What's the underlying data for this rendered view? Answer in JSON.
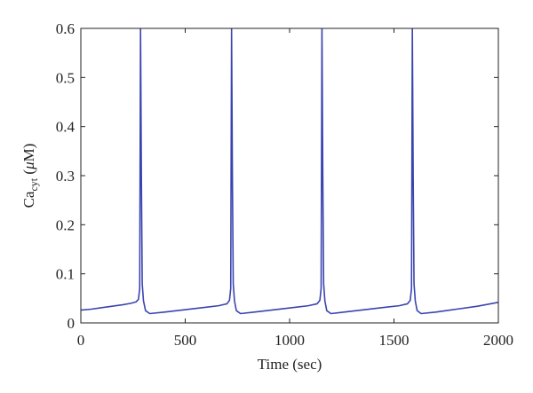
{
  "chart_data": {
    "type": "line",
    "xlabel": "Time (sec)",
    "ylabel": {
      "main": "Ca",
      "sub": "cyt",
      "unit_open": " (",
      "unit_mu": "μ",
      "unit_rest": "M)"
    },
    "xlim": [
      0,
      2000
    ],
    "ylim": [
      0,
      0.6
    ],
    "xticks": [
      0,
      500,
      1000,
      1500,
      2000
    ],
    "xtick_labels": [
      "0",
      "500",
      "1000",
      "1500",
      "2000"
    ],
    "yticks": [
      0,
      0.1,
      0.2,
      0.3,
      0.4,
      0.5,
      0.6
    ],
    "ytick_labels": [
      "0",
      "0.1",
      "0.2",
      "0.3",
      "0.4",
      "0.5",
      "0.6"
    ],
    "grid": false,
    "legend": "none",
    "series": [
      {
        "color": "#3a44b0",
        "x": [
          0,
          50,
          100,
          150,
          200,
          240,
          265,
          276,
          282,
          286,
          290,
          294,
          300,
          310,
          330,
          400,
          500,
          600,
          660,
          700,
          712,
          718,
          722,
          726,
          730,
          736,
          745,
          765,
          830,
          930,
          1030,
          1090,
          1132,
          1145,
          1151,
          1155,
          1159,
          1163,
          1169,
          1178,
          1198,
          1260,
          1360,
          1460,
          1525,
          1565,
          1578,
          1584,
          1588,
          1592,
          1596,
          1602,
          1611,
          1630,
          1700,
          1800,
          1900,
          2000
        ],
        "y": [
          0.026,
          0.028,
          0.031,
          0.034,
          0.037,
          0.04,
          0.043,
          0.048,
          0.07,
          0.6,
          0.3,
          0.08,
          0.045,
          0.025,
          0.019,
          0.022,
          0.027,
          0.032,
          0.035,
          0.039,
          0.046,
          0.07,
          0.6,
          0.3,
          0.08,
          0.045,
          0.025,
          0.019,
          0.022,
          0.027,
          0.032,
          0.035,
          0.039,
          0.046,
          0.07,
          0.6,
          0.3,
          0.08,
          0.045,
          0.025,
          0.019,
          0.022,
          0.027,
          0.032,
          0.035,
          0.039,
          0.046,
          0.07,
          0.6,
          0.3,
          0.08,
          0.045,
          0.025,
          0.019,
          0.022,
          0.028,
          0.034,
          0.042
        ]
      }
    ]
  }
}
